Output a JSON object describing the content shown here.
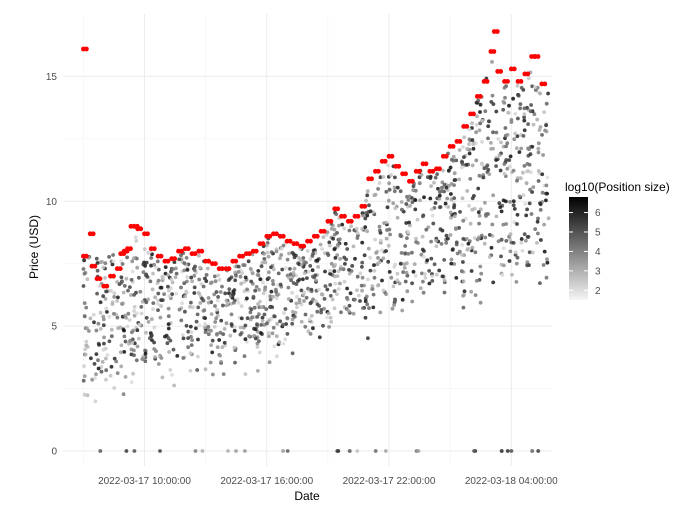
{
  "chart_data": {
    "type": "scatter",
    "title": "",
    "xlabel": "Date",
    "ylabel": "Price (USD)",
    "x_ticks": [
      "2022-03-17 10:00:00",
      "2022-03-17 16:00:00",
      "2022-03-17 22:00:00",
      "2022-03-18 04:00:00"
    ],
    "x_range": [
      "2022-03-17 06:00:00",
      "2022-03-18 06:00:00"
    ],
    "y_ticks": [
      0,
      5,
      10,
      15
    ],
    "ylim": [
      -0.6,
      17.5
    ],
    "grid": true,
    "legend": {
      "title": "log10(Position size)",
      "placement": "right",
      "ticks": [
        2,
        3,
        4,
        5,
        6
      ],
      "range": [
        1.5,
        6.8
      ],
      "low_color": "#f5f5f5",
      "high_color": "#000000"
    },
    "highlight_color": "#ff0000",
    "series": [
      {
        "kind": "highlighted",
        "points": [
          [
            "2022-03-17 07:00",
            16.1
          ],
          [
            "2022-03-17 07:00",
            7.8
          ],
          [
            "2022-03-17 07:20",
            8.7
          ],
          [
            "2022-03-17 07:25",
            7.4
          ],
          [
            "2022-03-17 07:40",
            6.9
          ],
          [
            "2022-03-17 08:00",
            6.6
          ],
          [
            "2022-03-17 08:20",
            7.0
          ],
          [
            "2022-03-17 08:40",
            7.3
          ],
          [
            "2022-03-17 08:50",
            7.9
          ],
          [
            "2022-03-17 09:00",
            8.0
          ],
          [
            "2022-03-17 09:10",
            8.1
          ],
          [
            "2022-03-17 09:20",
            9.0
          ],
          [
            "2022-03-17 09:30",
            9.0
          ],
          [
            "2022-03-17 09:40",
            8.9
          ],
          [
            "2022-03-17 10:00",
            8.7
          ],
          [
            "2022-03-17 10:20",
            8.1
          ],
          [
            "2022-03-17 10:40",
            7.8
          ],
          [
            "2022-03-17 11:00",
            7.6
          ],
          [
            "2022-03-17 11:20",
            7.7
          ],
          [
            "2022-03-17 11:40",
            8.0
          ],
          [
            "2022-03-17 12:00",
            8.1
          ],
          [
            "2022-03-17 12:20",
            7.9
          ],
          [
            "2022-03-17 12:40",
            8.0
          ],
          [
            "2022-03-17 13:00",
            7.6
          ],
          [
            "2022-03-17 13:20",
            7.5
          ],
          [
            "2022-03-17 13:40",
            7.3
          ],
          [
            "2022-03-17 14:00",
            7.3
          ],
          [
            "2022-03-17 14:20",
            7.6
          ],
          [
            "2022-03-17 14:40",
            7.8
          ],
          [
            "2022-03-17 15:00",
            7.9
          ],
          [
            "2022-03-17 15:20",
            8.0
          ],
          [
            "2022-03-17 15:40",
            8.3
          ],
          [
            "2022-03-17 16:00",
            8.6
          ],
          [
            "2022-03-17 16:20",
            8.7
          ],
          [
            "2022-03-17 16:40",
            8.6
          ],
          [
            "2022-03-17 17:00",
            8.4
          ],
          [
            "2022-03-17 17:20",
            8.3
          ],
          [
            "2022-03-17 17:40",
            8.2
          ],
          [
            "2022-03-17 18:00",
            8.4
          ],
          [
            "2022-03-17 18:20",
            8.6
          ],
          [
            "2022-03-17 18:40",
            8.8
          ],
          [
            "2022-03-17 19:00",
            9.2
          ],
          [
            "2022-03-17 19:20",
            9.7
          ],
          [
            "2022-03-17 19:40",
            9.4
          ],
          [
            "2022-03-17 20:00",
            9.2
          ],
          [
            "2022-03-17 20:20",
            9.4
          ],
          [
            "2022-03-17 20:40",
            9.8
          ],
          [
            "2022-03-17 21:00",
            10.9
          ],
          [
            "2022-03-17 21:20",
            11.2
          ],
          [
            "2022-03-17 21:40",
            11.6
          ],
          [
            "2022-03-17 22:00",
            11.8
          ],
          [
            "2022-03-17 22:20",
            11.4
          ],
          [
            "2022-03-17 22:40",
            11.1
          ],
          [
            "2022-03-17 23:00",
            10.8
          ],
          [
            "2022-03-17 23:20",
            11.2
          ],
          [
            "2022-03-17 23:40",
            11.5
          ],
          [
            "2022-03-18 00:00",
            11.2
          ],
          [
            "2022-03-18 00:20",
            11.3
          ],
          [
            "2022-03-18 00:40",
            11.8
          ],
          [
            "2022-03-18 01:00",
            12.2
          ],
          [
            "2022-03-18 01:20",
            12.4
          ],
          [
            "2022-03-18 01:40",
            13.0
          ],
          [
            "2022-03-18 02:00",
            13.5
          ],
          [
            "2022-03-18 02:20",
            14.2
          ],
          [
            "2022-03-18 02:40",
            14.8
          ],
          [
            "2022-03-18 03:00",
            16.0
          ],
          [
            "2022-03-18 03:10",
            16.8
          ],
          [
            "2022-03-18 03:20",
            15.2
          ],
          [
            "2022-03-18 03:40",
            14.8
          ],
          [
            "2022-03-18 04:00",
            15.3
          ],
          [
            "2022-03-18 04:20",
            14.8
          ],
          [
            "2022-03-18 04:40",
            15.1
          ],
          [
            "2022-03-18 05:00",
            15.8
          ],
          [
            "2022-03-18 05:10",
            15.8
          ],
          [
            "2022-03-18 05:30",
            14.7
          ]
        ]
      }
    ]
  }
}
